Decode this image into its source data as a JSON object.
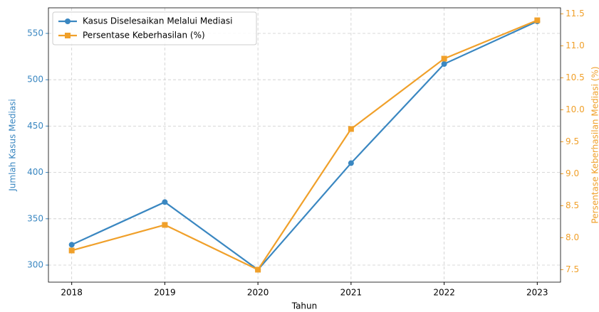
{
  "chart_data": {
    "type": "line",
    "x": [
      2018,
      2019,
      2020,
      2021,
      2022,
      2023
    ],
    "xlabel": "Tahun",
    "ylabel": "Jumlah Kasus Mediasi",
    "y2label": "Persentase Keberhasilan Mediasi (%)",
    "xlim": [
      2017.75,
      2023.25
    ],
    "xticks": [
      2018,
      2019,
      2020,
      2021,
      2022,
      2023
    ],
    "ylim": [
      281.6,
      577.6
    ],
    "yticks": [
      300,
      350,
      400,
      450,
      500,
      550
    ],
    "y2lim": [
      7.305,
      11.595
    ],
    "y2ticks": [
      7.5,
      {
        "value": 8,
        "label": "8.0"
      },
      8.5,
      {
        "value": 9,
        "label": "9.0"
      },
      9.5,
      {
        "value": 10,
        "label": "10.0"
      },
      10.5,
      {
        "value": 11,
        "label": "11.0"
      },
      11.5
    ],
    "grid": true,
    "legend": "upper left",
    "series": [
      {
        "name": "Kasus Diselesaikan Melalui Mediasi",
        "color": "#3a87c1",
        "marker": "circle",
        "axis": "y",
        "values": [
          322,
          368,
          295,
          410,
          517,
          563
        ]
      },
      {
        "name": "Persentase Keberhasilan (%)",
        "color": "#f0a02a",
        "marker": "square",
        "axis": "y2",
        "values": [
          7.8,
          8.2,
          7.5,
          9.7,
          10.8,
          11.4
        ]
      }
    ]
  }
}
